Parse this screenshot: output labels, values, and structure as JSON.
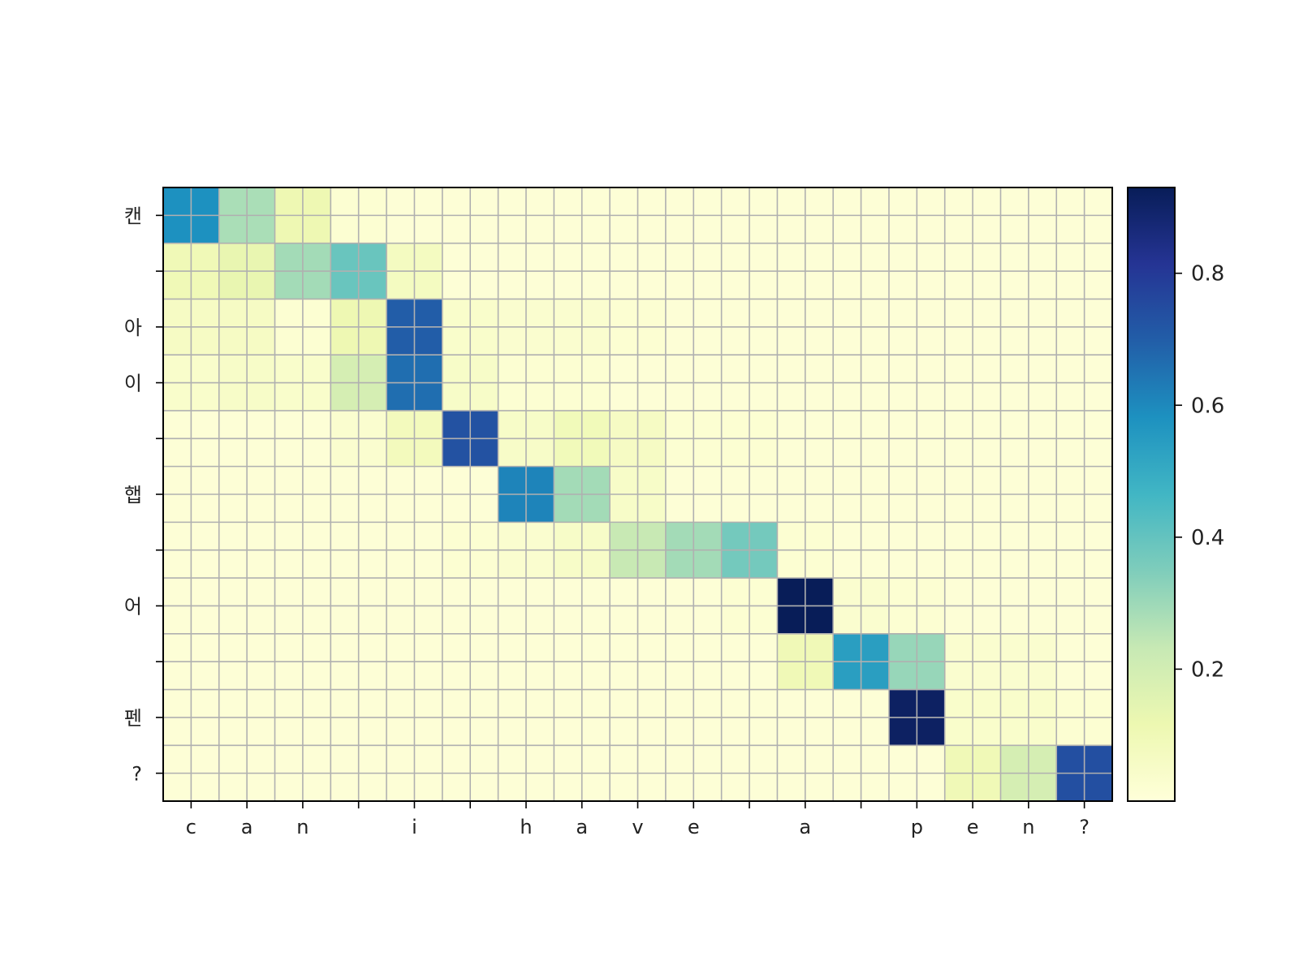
{
  "chart_data": {
    "type": "heatmap",
    "title": "",
    "xlabel": "",
    "ylabel": "",
    "grid": true,
    "colormap": "YlGnBu",
    "x_labels": [
      "c",
      "a",
      "n",
      "",
      "i",
      "",
      "h",
      "a",
      "v",
      "e",
      "",
      "a",
      "",
      "p",
      "e",
      "n",
      "?"
    ],
    "y_labels": [
      "캔",
      "",
      "아",
      "이",
      "",
      "햅",
      "",
      "어",
      "",
      "펜",
      "?"
    ],
    "values": [
      [
        0.58,
        0.28,
        0.11,
        0.02,
        0.01,
        0.01,
        0.01,
        0.01,
        0.01,
        0.01,
        0.01,
        0.01,
        0.01,
        0.01,
        0.01,
        0.01,
        0.01
      ],
      [
        0.1,
        0.13,
        0.29,
        0.39,
        0.07,
        0.01,
        0.01,
        0.01,
        0.01,
        0.01,
        0.01,
        0.01,
        0.01,
        0.01,
        0.01,
        0.01,
        0.01
      ],
      [
        0.06,
        0.06,
        0.02,
        0.11,
        0.7,
        0.04,
        0.03,
        0.03,
        0.02,
        0.01,
        0.01,
        0.01,
        0.01,
        0.01,
        0.01,
        0.01,
        0.01
      ],
      [
        0.04,
        0.05,
        0.04,
        0.19,
        0.66,
        0.05,
        0.02,
        0.02,
        0.01,
        0.01,
        0.01,
        0.01,
        0.01,
        0.01,
        0.01,
        0.01,
        0.01
      ],
      [
        0.01,
        0.01,
        0.01,
        0.03,
        0.08,
        0.73,
        0.05,
        0.09,
        0.06,
        0.02,
        0.02,
        0.01,
        0.01,
        0.01,
        0.01,
        0.01,
        0.01
      ],
      [
        0.01,
        0.01,
        0.01,
        0.01,
        0.01,
        0.01,
        0.61,
        0.29,
        0.05,
        0.01,
        0.01,
        0.01,
        0.01,
        0.01,
        0.01,
        0.01,
        0.01
      ],
      [
        0.01,
        0.01,
        0.01,
        0.01,
        0.01,
        0.02,
        0.03,
        0.05,
        0.23,
        0.29,
        0.37,
        0.02,
        0.01,
        0.01,
        0.01,
        0.01,
        0.01
      ],
      [
        0.01,
        0.01,
        0.01,
        0.01,
        0.01,
        0.01,
        0.01,
        0.01,
        0.01,
        0.01,
        0.02,
        0.93,
        0.03,
        0.02,
        0.01,
        0.01,
        0.01
      ],
      [
        0.01,
        0.01,
        0.01,
        0.01,
        0.01,
        0.01,
        0.01,
        0.01,
        0.01,
        0.01,
        0.01,
        0.1,
        0.54,
        0.31,
        0.03,
        0.03,
        0.01
      ],
      [
        0.01,
        0.01,
        0.01,
        0.01,
        0.01,
        0.01,
        0.01,
        0.01,
        0.01,
        0.01,
        0.01,
        0.01,
        0.01,
        0.91,
        0.04,
        0.04,
        0.02
      ],
      [
        0.01,
        0.01,
        0.01,
        0.01,
        0.01,
        0.01,
        0.01,
        0.01,
        0.01,
        0.01,
        0.01,
        0.01,
        0.01,
        0.01,
        0.1,
        0.19,
        0.74
      ]
    ],
    "colorbar": {
      "min": 0.0,
      "max": 0.93,
      "ticks": [
        0.2,
        0.4,
        0.6,
        0.8
      ],
      "tick_labels": [
        "0.2",
        "0.4",
        "0.6",
        "0.8"
      ]
    }
  }
}
